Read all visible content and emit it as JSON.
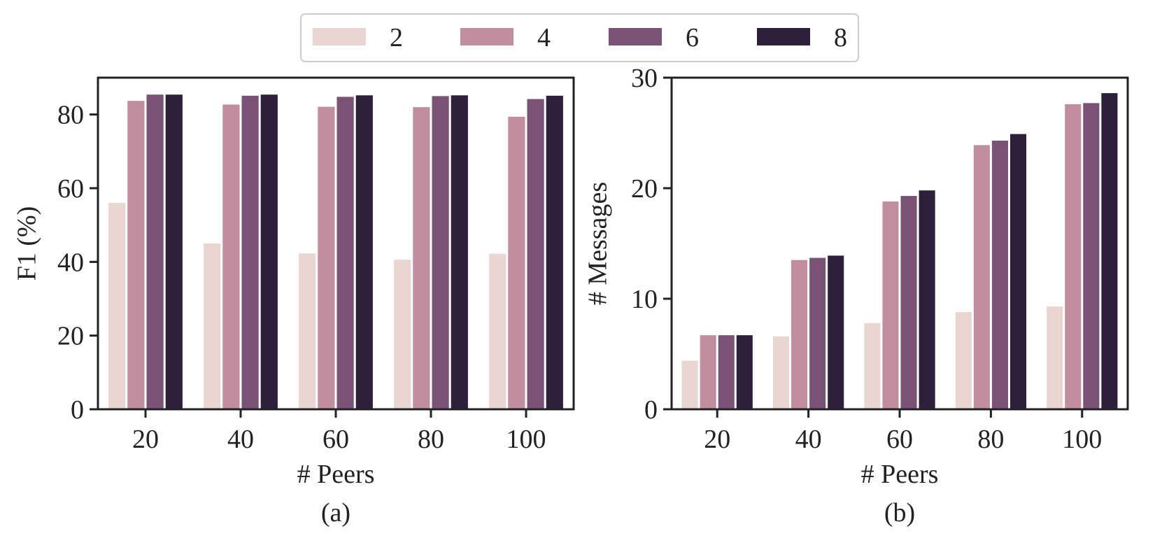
{
  "legend": {
    "items": [
      {
        "label": "2",
        "color": "#ead6d1"
      },
      {
        "label": "4",
        "color": "#c08e9f"
      },
      {
        "label": "6",
        "color": "#7a5276"
      },
      {
        "label": "8",
        "color": "#2e1f3a"
      }
    ],
    "placement": "top-center"
  },
  "chart_data": [
    {
      "type": "bar",
      "caption": "(a)",
      "xlabel": "# Peers",
      "ylabel": "F1 (%)",
      "categories": [
        "20",
        "40",
        "60",
        "80",
        "100"
      ],
      "ylim": [
        0,
        90
      ],
      "yticks": [
        0,
        20,
        40,
        60,
        80
      ],
      "series": [
        {
          "name": "2",
          "values": [
            56.0,
            45.0,
            42.3,
            40.6,
            42.2
          ]
        },
        {
          "name": "4",
          "values": [
            83.7,
            82.7,
            82.1,
            82.0,
            79.4
          ]
        },
        {
          "name": "6",
          "values": [
            85.4,
            85.1,
            84.8,
            85.0,
            84.2
          ]
        },
        {
          "name": "8",
          "values": [
            85.4,
            85.4,
            85.2,
            85.2,
            85.1
          ]
        }
      ]
    },
    {
      "type": "bar",
      "caption": "(b)",
      "xlabel": "# Peers",
      "ylabel": "# Messages",
      "categories": [
        "20",
        "40",
        "60",
        "80",
        "100"
      ],
      "ylim": [
        0,
        30
      ],
      "yticks": [
        0,
        10,
        20,
        30
      ],
      "series": [
        {
          "name": "2",
          "values": [
            4.4,
            6.6,
            7.8,
            8.8,
            9.3
          ]
        },
        {
          "name": "4",
          "values": [
            6.7,
            13.5,
            18.8,
            23.9,
            27.6
          ]
        },
        {
          "name": "6",
          "values": [
            6.7,
            13.7,
            19.3,
            24.3,
            27.7
          ]
        },
        {
          "name": "8",
          "values": [
            6.7,
            13.9,
            19.8,
            24.9,
            28.6
          ]
        }
      ]
    }
  ]
}
